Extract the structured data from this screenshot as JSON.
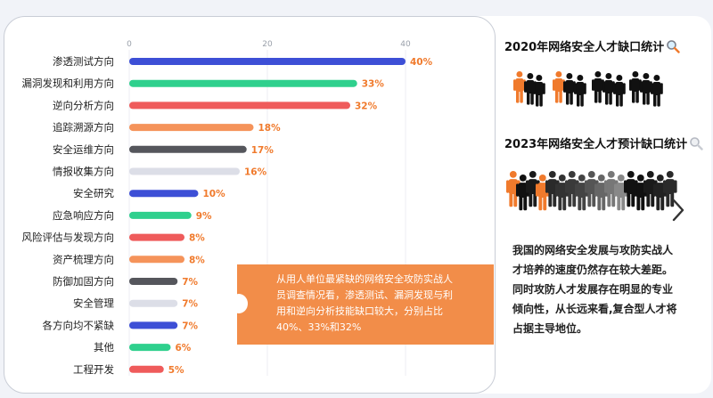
{
  "chart_data": {
    "type": "bar",
    "orientation": "horizontal",
    "categories": [
      "渗透测试方向",
      "漏洞发现和利用方向",
      "逆向分析方向",
      "追踪溯源方向",
      "安全运维方向",
      "情报收集方向",
      "安全研究",
      "应急响应方向",
      "风险评估与发现方向",
      "资产梳理方向",
      "防御加固方向",
      "安全管理",
      "各方向均不紧缺",
      "其他",
      "工程开发"
    ],
    "values": [
      40,
      33,
      32,
      18,
      17,
      16,
      10,
      9,
      8,
      8,
      7,
      7,
      7,
      6,
      5
    ],
    "value_labels": [
      "40%",
      "33%",
      "32%",
      "18%",
      "17%",
      "16%",
      "10%",
      "9%",
      "8%",
      "8%",
      "7%",
      "7%",
      "7%",
      "6%",
      "5%"
    ],
    "bar_colors": [
      "#3d4fd6",
      "#2fd08d",
      "#ef5b5b",
      "#f5935a",
      "#55565c",
      "#dcdee7",
      "#3d4fd6",
      "#2fd08d",
      "#ef5b5b",
      "#f5935a",
      "#55565c",
      "#dcdee7",
      "#3d4fd6",
      "#2fd08d",
      "#ef5b5b"
    ],
    "label_color": "#f07a2c",
    "xticks": [
      0,
      20,
      40
    ],
    "xlim": [
      0,
      42
    ],
    "grid": true
  },
  "callout": {
    "line1": "从用人单位最紧缺的网络安全攻防实战人",
    "line2": "员调查情况看，渗透测试、漏洞发现与利",
    "line3": "用和逆向分析技能缺口较大，分别占比",
    "line4": "40%、33%和32%"
  },
  "right": {
    "title_2020": "2020年网络安全人才缺口统计",
    "title_2023": "2023年网络安全人才预计缺口统计",
    "summary_line1": "我国的网络安全发展与攻防实战人",
    "summary_line2": "才培养的速度仍然存在较大差距。",
    "summary_line3": "同时攻防人才发展存在明显的专业",
    "summary_line4": "倾向性，从长远来看,复合型人才将",
    "summary_line5": "占据主导地位。",
    "icons": [
      "magnifier-icon",
      "people-group-icon",
      "chevron-right-icon"
    ],
    "accent_color": "#f07a2c"
  }
}
